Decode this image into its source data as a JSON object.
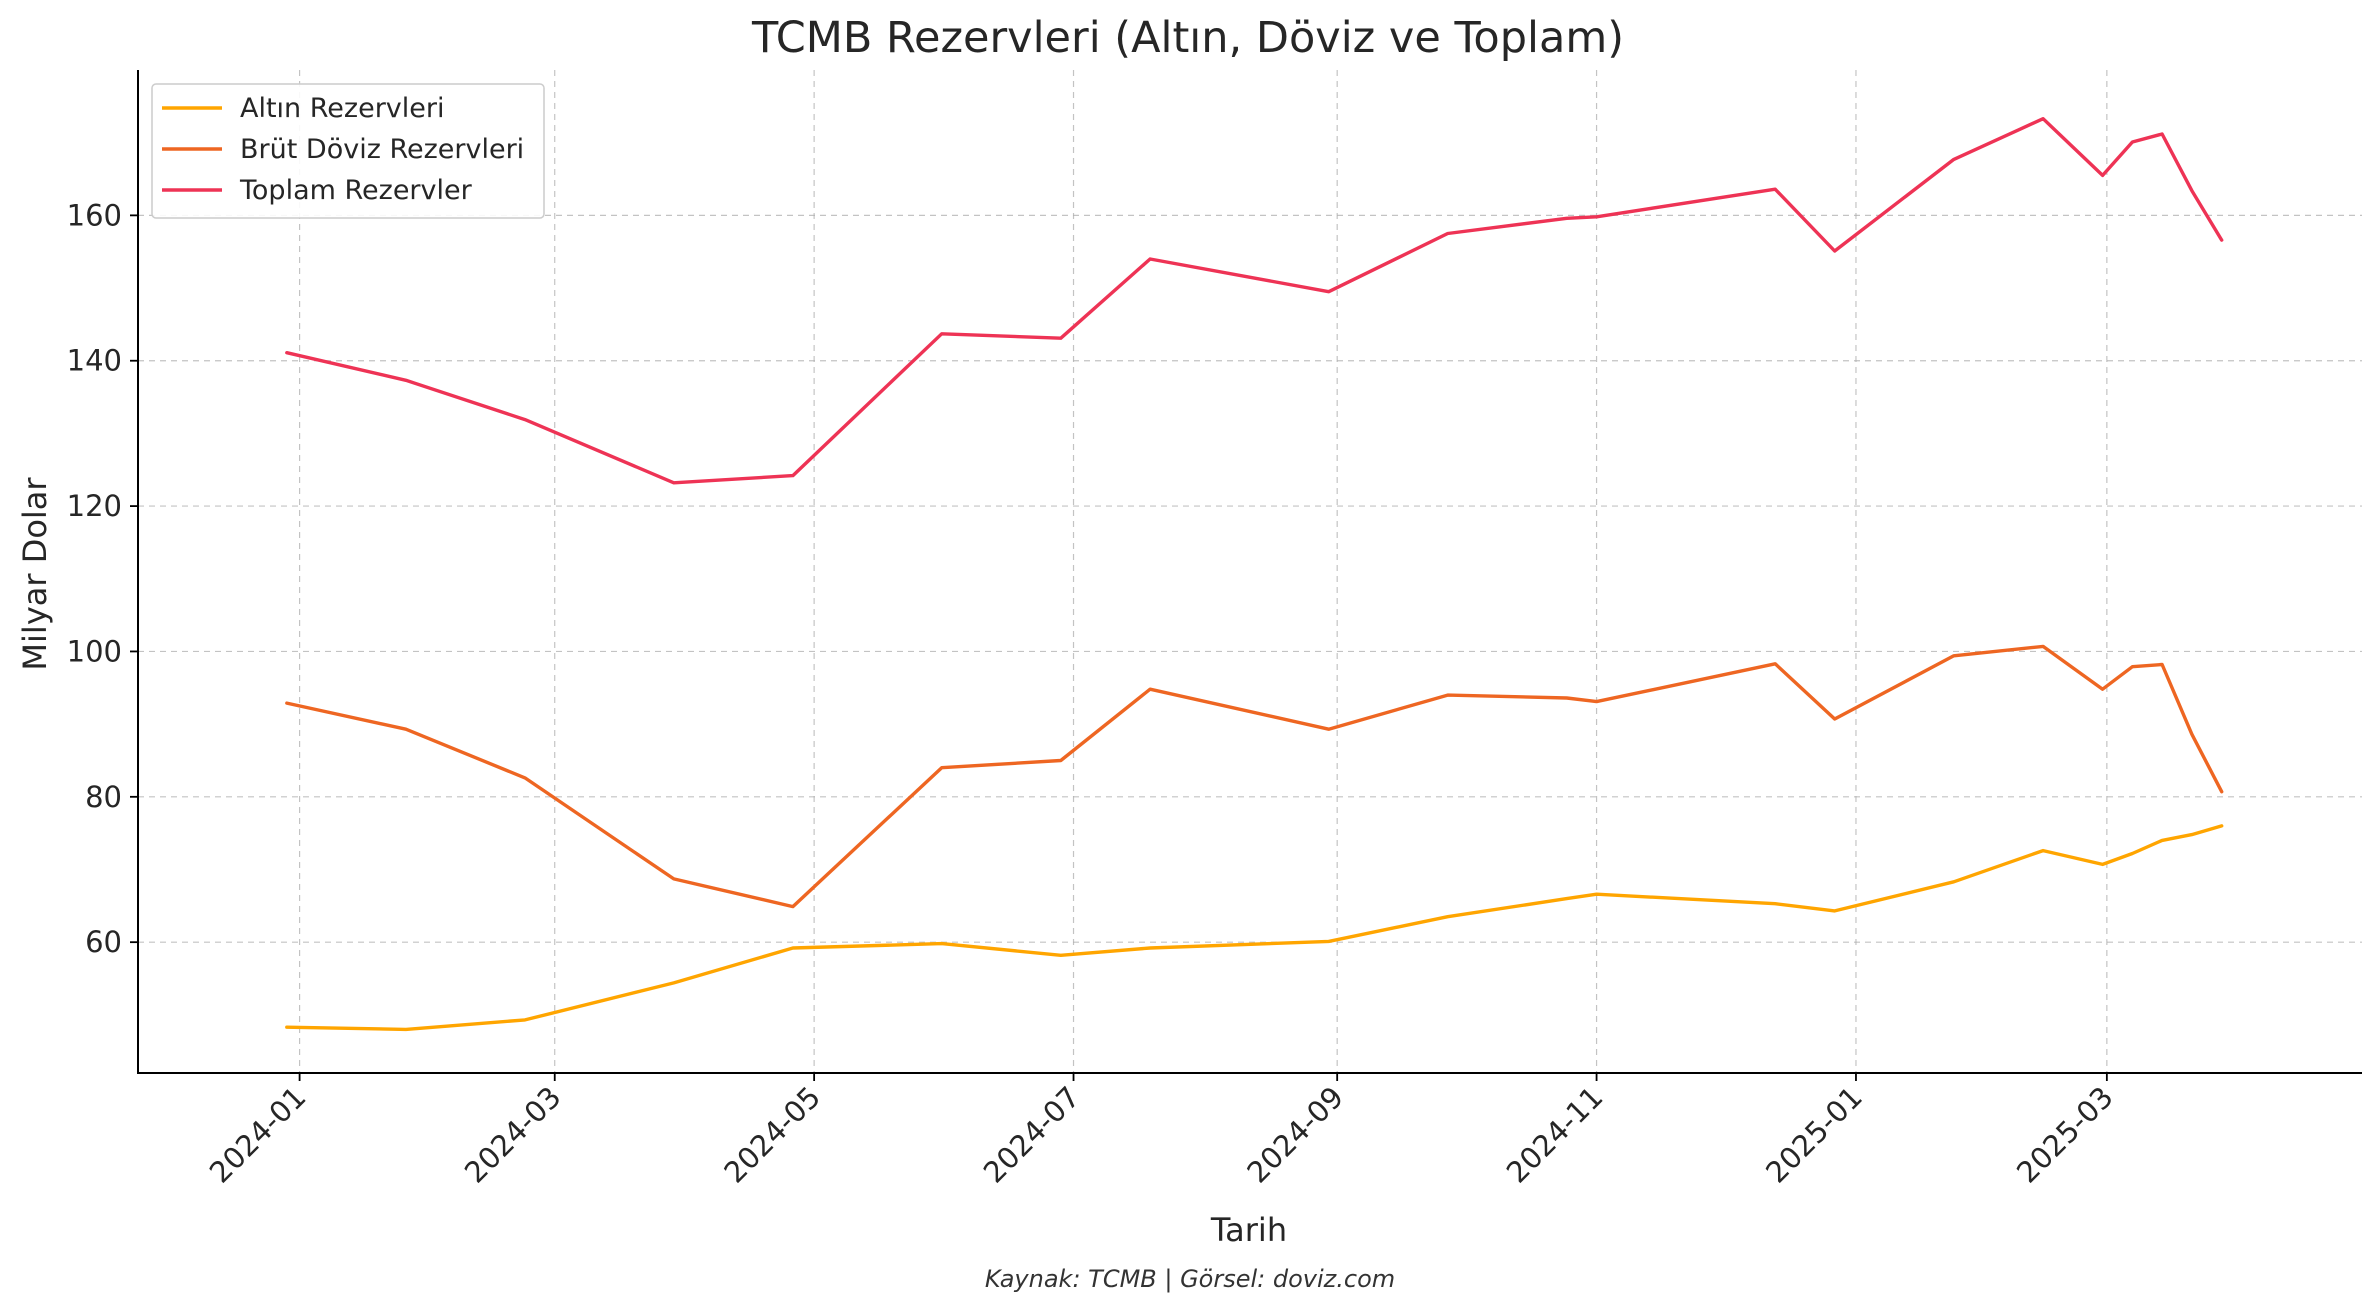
{
  "chart_data": {
    "type": "line",
    "title": "TCMB Rezervleri (Altın, Döviz ve Toplam)",
    "xlabel": "Tarih",
    "ylabel": "Milyar Dolar",
    "caption": "Kaynak: TCMB | Görsel: doviz.com",
    "xlim": [
      "2023-11-24",
      "2025-04-30"
    ],
    "ylim": [
      42,
      180
    ],
    "x_ticks": [
      "2024-01",
      "2024-03",
      "2024-05",
      "2024-07",
      "2024-09",
      "2024-11",
      "2025-01",
      "2025-03"
    ],
    "y_ticks": [
      60,
      80,
      100,
      120,
      140,
      160
    ],
    "grid": true,
    "legend_position": "top-left",
    "x": [
      "2023-12-29",
      "2024-01-26",
      "2024-02-23",
      "2024-03-29",
      "2024-04-26",
      "2024-05-31",
      "2024-06-28",
      "2024-07-19",
      "2024-08-30",
      "2024-09-27",
      "2024-10-25",
      "2024-11-01",
      "2024-12-13",
      "2024-12-27",
      "2025-01-24",
      "2025-02-14",
      "2025-02-28",
      "2025-03-07",
      "2025-03-14",
      "2025-03-21",
      "2025-03-28"
    ],
    "series": [
      {
        "name": "Altın Rezervleri",
        "color": "#FFA500",
        "values": [
          48.3,
          48.0,
          49.3,
          54.4,
          59.2,
          59.8,
          58.2,
          59.2,
          60.1,
          63.5,
          66.0,
          66.6,
          65.3,
          64.3,
          68.3,
          72.6,
          70.7,
          72.2,
          74.0,
          74.8,
          76.0
        ]
      },
      {
        "name": "Brüt Döviz Rezervleri",
        "color": "#EE6622",
        "values": [
          92.9,
          89.3,
          82.6,
          68.7,
          64.9,
          84.0,
          85.0,
          94.8,
          89.3,
          94.0,
          93.6,
          93.1,
          98.3,
          90.7,
          99.4,
          100.7,
          94.8,
          97.9,
          98.2,
          88.6,
          80.7
        ]
      },
      {
        "name": "Toplam Rezervler",
        "color": "#EE3355",
        "values": [
          141.1,
          137.3,
          131.9,
          123.2,
          124.2,
          143.7,
          143.1,
          154.0,
          149.5,
          157.5,
          159.6,
          159.8,
          163.6,
          155.1,
          167.7,
          173.3,
          165.5,
          170.1,
          171.2,
          163.4,
          156.6
        ]
      }
    ]
  }
}
